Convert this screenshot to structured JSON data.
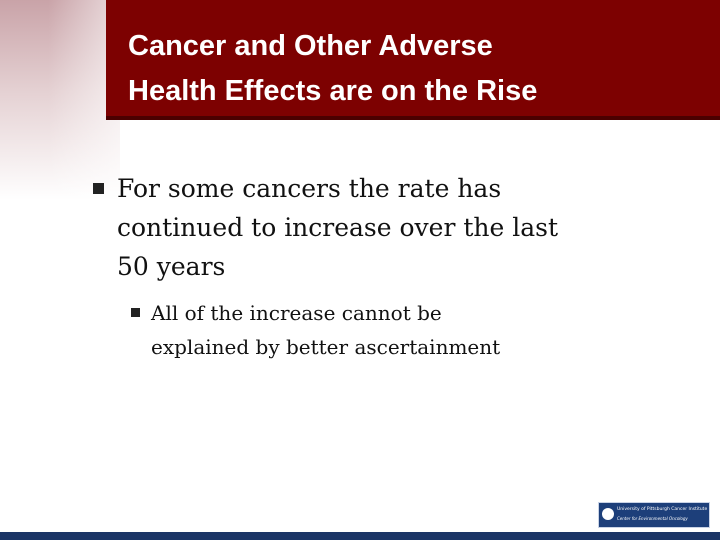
{
  "slide": {
    "title": [
      "Cancer and Other Adverse",
      "Health Effects are on the Rise"
    ],
    "bullets": [
      {
        "lines": [
          "For some cancers the rate has",
          "continued to increase over the last",
          "50 years"
        ],
        "sub_bullets": [
          {
            "lines": [
              "All of the increase cannot be",
              "explained by better ascertainment"
            ]
          }
        ]
      }
    ],
    "logo": {
      "line1": "University of Pittsburgh Cancer Institute",
      "line2": "Center for Environmental Oncology"
    }
  }
}
